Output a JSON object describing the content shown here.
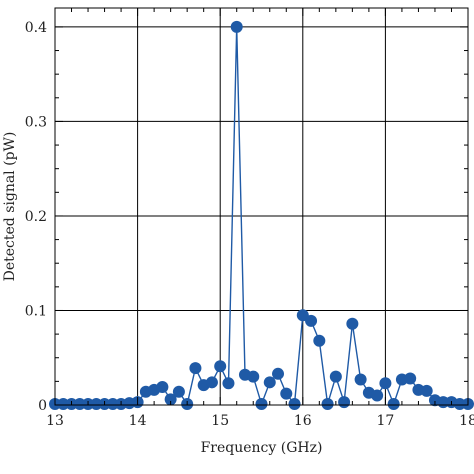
{
  "chart_data": {
    "type": "line",
    "xlabel": "Frequency (GHz)",
    "ylabel": "Detected signal (pW)",
    "xlim": [
      13,
      18
    ],
    "ylim": [
      0,
      0.42
    ],
    "x_ticks": [
      13,
      14,
      15,
      16,
      17,
      18
    ],
    "y_ticks": [
      0,
      0.1,
      0.2,
      0.3,
      0.4
    ],
    "x_tick_labels": [
      "13",
      "14",
      "15",
      "16",
      "17",
      "18"
    ],
    "y_tick_labels": [
      "0",
      "0.1",
      "0.2",
      "0.3",
      "0.4"
    ],
    "grid": true,
    "series_color": "#1f5aa6",
    "series": [
      {
        "x": [
          13.0,
          13.1,
          13.2,
          13.3,
          13.4,
          13.5,
          13.6,
          13.7,
          13.8,
          13.9,
          14.0,
          14.1,
          14.2,
          14.3,
          14.4,
          14.5,
          14.6,
          14.7,
          14.8,
          14.9,
          15.0,
          15.1,
          15.2,
          15.3,
          15.4,
          15.5,
          15.6,
          15.7,
          15.8,
          15.9,
          16.0,
          16.1,
          16.2,
          16.3,
          16.4,
          16.5,
          16.6,
          16.7,
          16.8,
          16.9,
          17.0,
          17.1,
          17.2,
          17.3,
          17.4,
          17.5,
          17.6,
          17.7,
          17.8,
          17.9,
          18.0
        ],
        "y": [
          0.001,
          0.001,
          0.001,
          0.001,
          0.001,
          0.001,
          0.001,
          0.001,
          0.001,
          0.002,
          0.003,
          0.014,
          0.016,
          0.019,
          0.006,
          0.014,
          0.001,
          0.039,
          0.021,
          0.024,
          0.041,
          0.023,
          0.4,
          0.032,
          0.03,
          0.001,
          0.024,
          0.033,
          0.012,
          0.001,
          0.095,
          0.089,
          0.068,
          0.001,
          0.03,
          0.003,
          0.086,
          0.027,
          0.013,
          0.01,
          0.023,
          0.001,
          0.027,
          0.028,
          0.016,
          0.015,
          0.005,
          0.003,
          0.003,
          0.001,
          0.001
        ]
      }
    ]
  }
}
